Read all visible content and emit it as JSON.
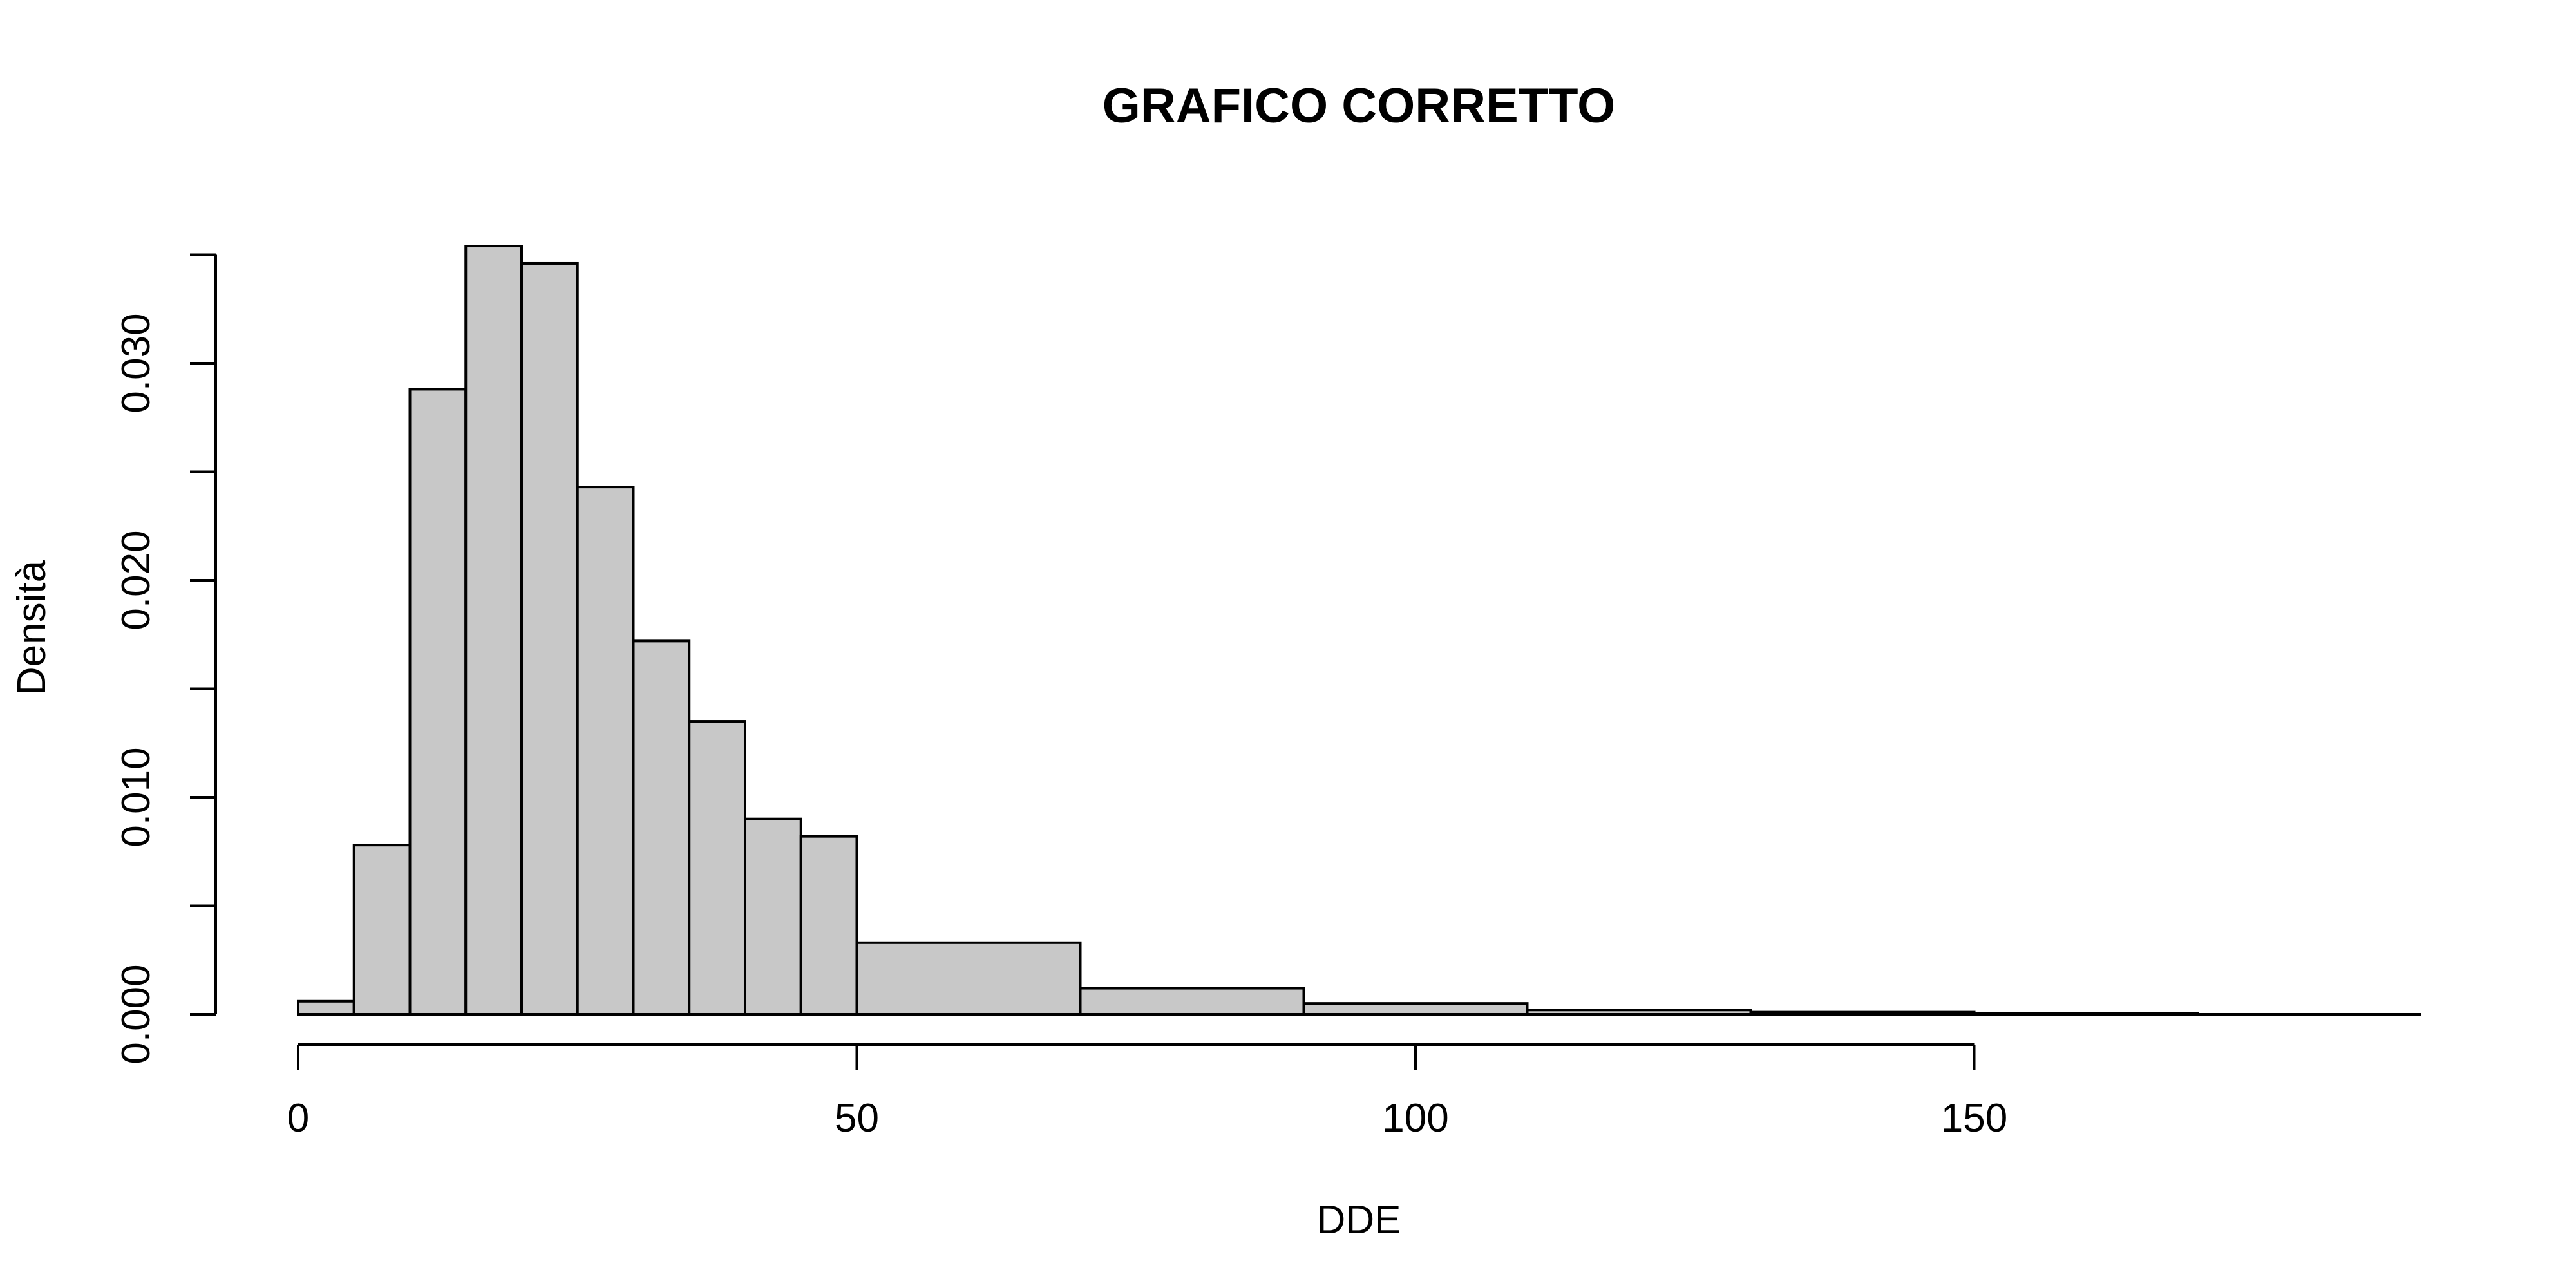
{
  "chart_data": {
    "type": "bar",
    "title": "GRAFICO CORRETTO",
    "xlabel": "DDE",
    "ylabel": "Densità",
    "xlim": [
      0,
      190
    ],
    "ylim": [
      0,
      0.035
    ],
    "x_ticks": [
      0,
      50,
      100,
      150
    ],
    "x_tick_labels": [
      "0",
      "50",
      "100",
      "150"
    ],
    "y_ticks": [
      0,
      0.005,
      0.01,
      0.015,
      0.02,
      0.025,
      0.03,
      0.035
    ],
    "y_tick_labels": [
      "0.000",
      "",
      "0.010",
      "",
      "0.020",
      "",
      "0.030",
      ""
    ],
    "grid": false,
    "bins": [
      {
        "x0": 0,
        "x1": 5,
        "density": 0.0006
      },
      {
        "x0": 5,
        "x1": 10,
        "density": 0.0078
      },
      {
        "x0": 10,
        "x1": 15,
        "density": 0.0288
      },
      {
        "x0": 15,
        "x1": 20,
        "density": 0.0354
      },
      {
        "x0": 20,
        "x1": 25,
        "density": 0.0346
      },
      {
        "x0": 25,
        "x1": 30,
        "density": 0.0243
      },
      {
        "x0": 30,
        "x1": 35,
        "density": 0.0172
      },
      {
        "x0": 35,
        "x1": 40,
        "density": 0.0135
      },
      {
        "x0": 40,
        "x1": 45,
        "density": 0.009
      },
      {
        "x0": 45,
        "x1": 50,
        "density": 0.0082
      },
      {
        "x0": 50,
        "x1": 70,
        "density": 0.0033
      },
      {
        "x0": 70,
        "x1": 90,
        "density": 0.0012
      },
      {
        "x0": 90,
        "x1": 110,
        "density": 0.0005
      },
      {
        "x0": 110,
        "x1": 130,
        "density": 0.0002
      },
      {
        "x0": 130,
        "x1": 150,
        "density": 0.0001
      },
      {
        "x0": 150,
        "x1": 170,
        "density": 5e-05
      },
      {
        "x0": 170,
        "x1": 190,
        "density": 0.0
      }
    ],
    "colors": {
      "bar_fill": "#c8c8c8",
      "bar_stroke": "#000000"
    }
  }
}
